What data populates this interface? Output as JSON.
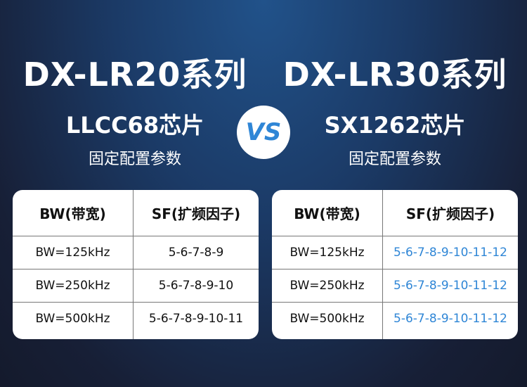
{
  "left": {
    "title": "DX-LR20系列",
    "chip": "LLCC68芯片",
    "subtitle": "固定配置参数",
    "headers": [
      "BW(带宽)",
      "SF(扩频因子)"
    ],
    "rows": [
      [
        "BW=125kHz",
        "5-6-7-8-9"
      ],
      [
        "BW=250kHz",
        "5-6-7-8-9-10"
      ],
      [
        "BW=500kHz",
        "5-6-7-8-9-10-11"
      ]
    ]
  },
  "vs": "VS",
  "right": {
    "title": "DX-LR30系列",
    "chip": "SX1262芯片",
    "subtitle": "固定配置参数",
    "headers": [
      "BW(带宽)",
      "SF(扩频因子)"
    ],
    "rows": [
      [
        "BW=125kHz",
        "5-6-7-8-9-10-11-12"
      ],
      [
        "BW=250kHz",
        "5-6-7-8-9-10-11-12"
      ],
      [
        "BW=500kHz",
        "5-6-7-8-9-10-11-12"
      ]
    ]
  },
  "colors": {
    "accent": "#2f86d6",
    "background_top": "#21528a",
    "background_bottom": "#141a2c"
  }
}
